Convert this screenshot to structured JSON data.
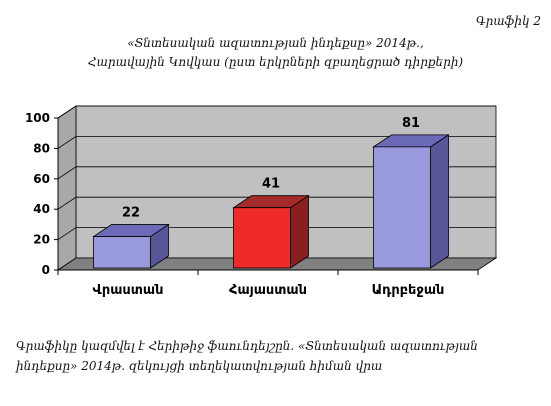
{
  "figure_label": "Գրաֆիկ 2",
  "title_line1": "«Տնտեսական ազատության ինդեքսը» 2014թ.,",
  "title_line2": "Հարավային Կովկաս (ըստ երկրների զբաղեցրած դիրքերի)",
  "note_line1": "Գրաֆիկը կազմվել է Հերիթիջ ֆաունդեյշըն. «Տնտեսական ազատության",
  "note_line2": "ինդեքսը» 2014թ. զեկույցի տեղեկատվության հիման վրա",
  "colors": {
    "wall": "#c0c0c0",
    "floor": "#808080",
    "bars": [
      "#9999dd",
      "#ee2a2a",
      "#9999dd"
    ],
    "bars_side": [
      "#565699",
      "#8a1f1f",
      "#565699"
    ],
    "bars_top": [
      "#6a6ab8",
      "#a52a2a",
      "#6a6ab8"
    ]
  },
  "chart_data": {
    "type": "bar",
    "categories": [
      "Վրաստան",
      "Հայաստան",
      "Ադրբեջան"
    ],
    "values": [
      22,
      41,
      81
    ],
    "ylim": [
      0,
      100
    ],
    "yticks": [
      "0",
      "20",
      "40",
      "60",
      "80",
      "100"
    ],
    "grid": true,
    "data_labels": [
      "22",
      "41",
      "81"
    ]
  }
}
